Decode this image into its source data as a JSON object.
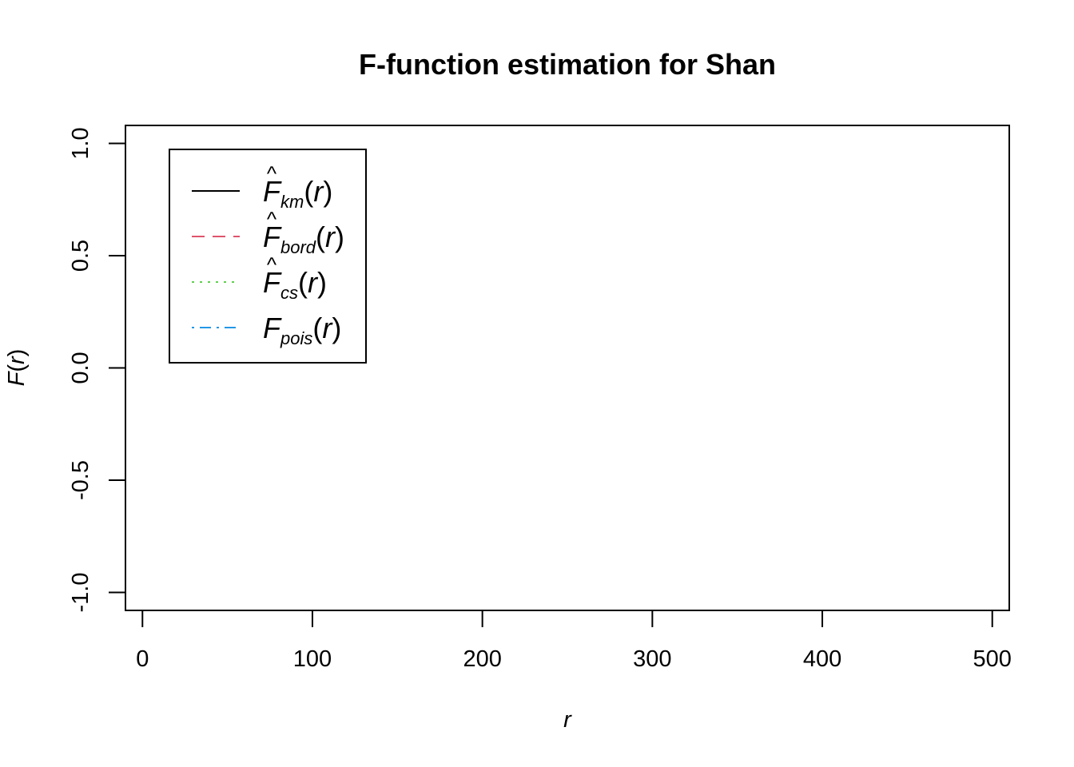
{
  "chart_data": {
    "type": "line",
    "title": "F-function estimation for Shan",
    "xlabel": "r",
    "ylabel": "F(r)",
    "ylabel_parts": {
      "main": "F",
      "open": "(",
      "var": "r",
      "close": ")"
    },
    "xlim": [
      -10,
      510
    ],
    "ylim": [
      -1.08,
      1.08
    ],
    "x_ticks": [
      0,
      100,
      200,
      300,
      400,
      500
    ],
    "x_tick_labels": [
      "0",
      "100",
      "200",
      "300",
      "400",
      "500"
    ],
    "y_ticks": [
      -1.0,
      -0.5,
      0.0,
      0.5,
      1.0
    ],
    "y_tick_labels": [
      "-1.0",
      "-0.5",
      "0.0",
      "0.5",
      "1.0"
    ],
    "grid": false,
    "legend_position": "top-left",
    "series": [
      {
        "name": "F̂km(r)",
        "label_main": "F",
        "hat": true,
        "label_sub": "km",
        "label_arg": "r",
        "color": "#000000",
        "dash": "solid",
        "x": [],
        "y": []
      },
      {
        "name": "F̂bord(r)",
        "label_main": "F",
        "hat": true,
        "label_sub": "bord",
        "label_arg": "r",
        "color": "#DF536B",
        "dash": "dashed",
        "x": [],
        "y": []
      },
      {
        "name": "F̂cs(r)",
        "label_main": "F",
        "hat": true,
        "label_sub": "cs",
        "label_arg": "r",
        "color": "#61D04F",
        "dash": "dotted",
        "x": [],
        "y": []
      },
      {
        "name": "Fpois(r)",
        "label_main": "F",
        "hat": false,
        "label_sub": "pois",
        "label_arg": "r",
        "color": "#2297E6",
        "dash": "dotdash",
        "x": [],
        "y": []
      }
    ]
  }
}
